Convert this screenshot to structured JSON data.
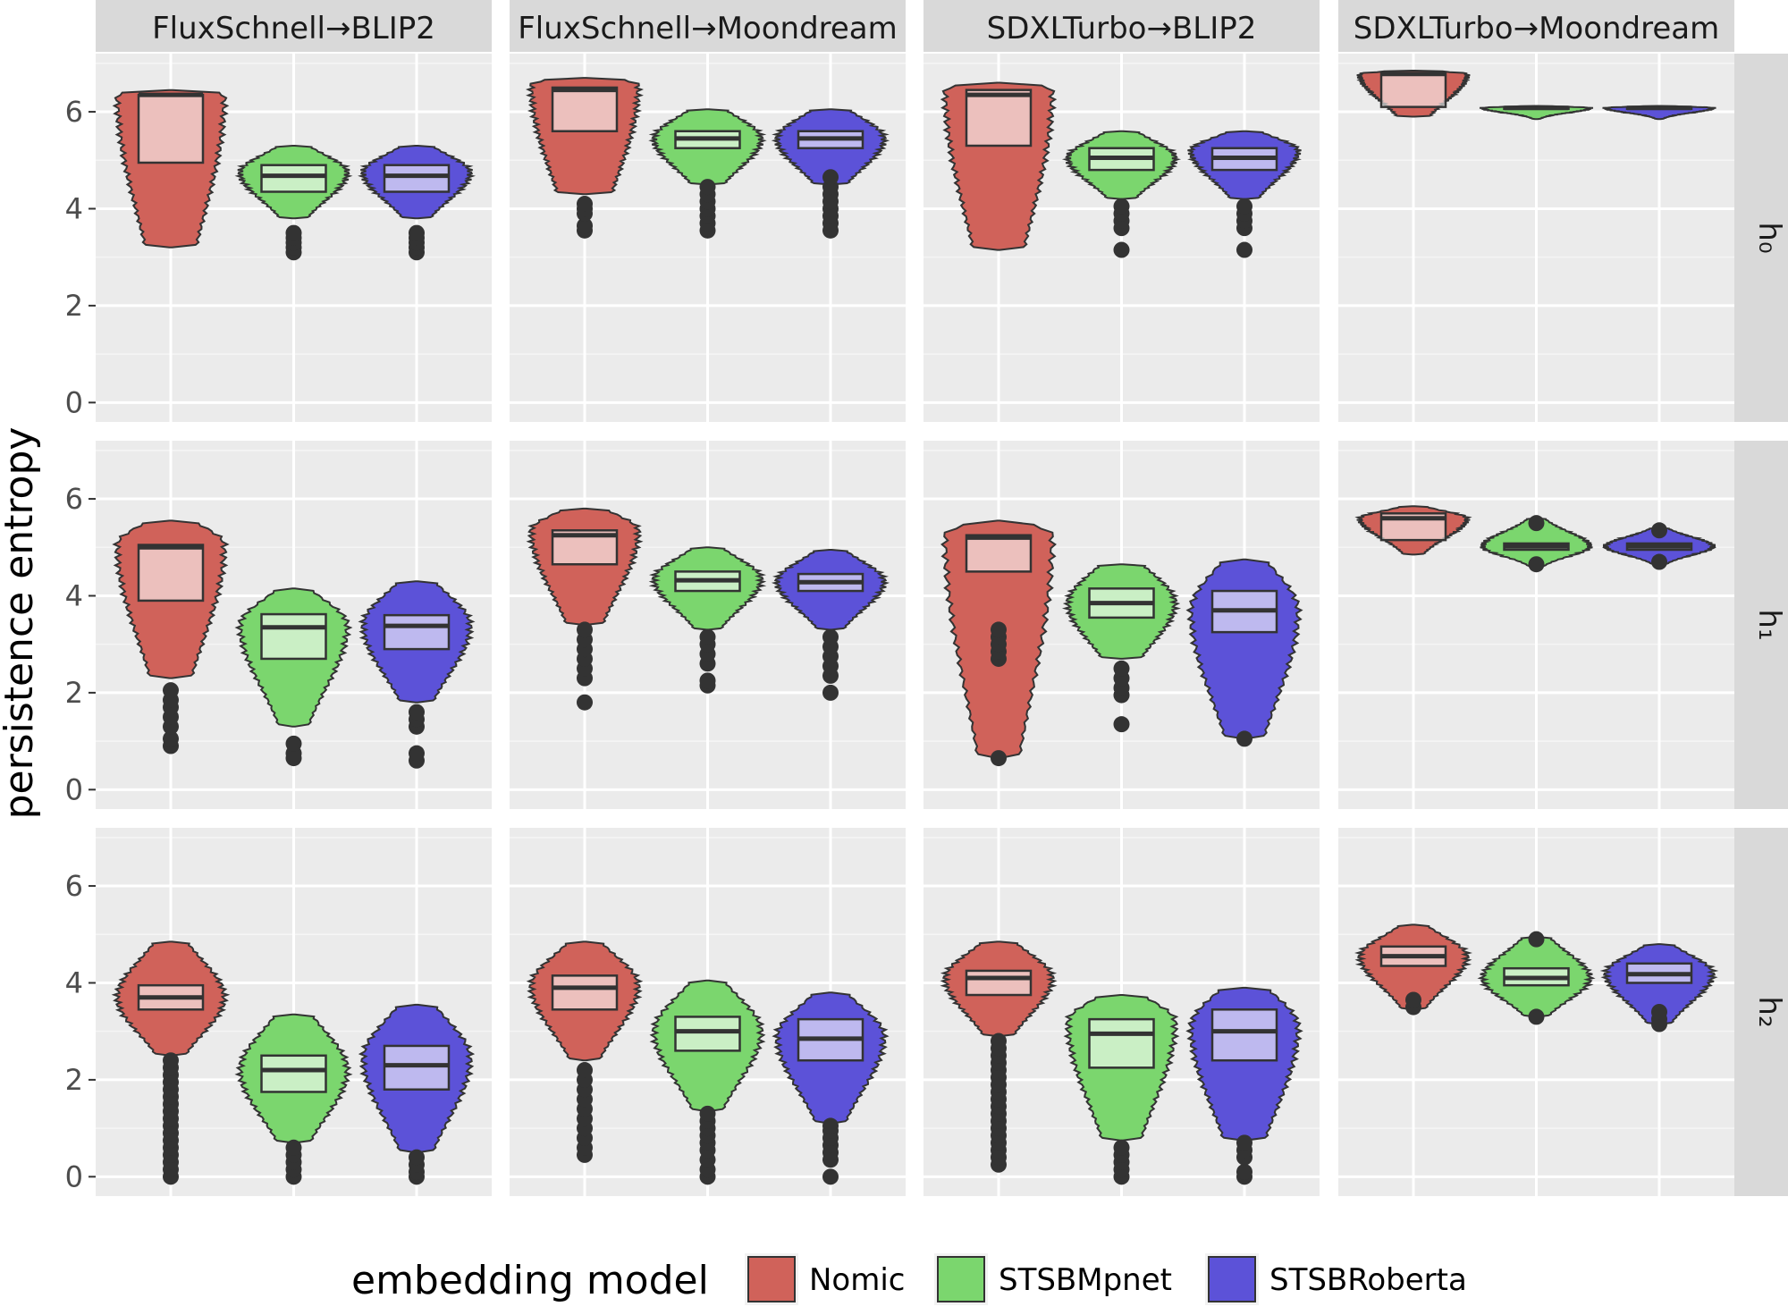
{
  "chart_data": {
    "type": "violin",
    "ylabel": "persistence entropy",
    "ylim": [
      -0.4,
      7.2
    ],
    "yticks": [
      0,
      2,
      4,
      6
    ],
    "grid": true,
    "legend": {
      "title": "embedding model",
      "position": "bottom"
    },
    "columns": [
      "FluxSchnell→BLIP2",
      "FluxSchnell→Moondream",
      "SDXLTurbo→BLIP2",
      "SDXLTurbo→Moondream"
    ],
    "rows": [
      "h₀",
      "h₁",
      "h₂"
    ],
    "series": [
      {
        "name": "Nomic",
        "color": "#d0625a"
      },
      {
        "name": "STSBMpnet",
        "color": "#7bd66e"
      },
      {
        "name": "STSBRoberta",
        "color": "#5c52d8"
      }
    ],
    "panels": [
      {
        "row": 0,
        "col": 0,
        "groups": [
          {
            "model": "Nomic",
            "min": 3.2,
            "max": 6.45,
            "q1": 4.95,
            "median": 6.35,
            "q3": 6.35,
            "mode": 6.35,
            "spread": 0.22,
            "outliers": []
          },
          {
            "model": "STSBMpnet",
            "min": 3.8,
            "max": 5.3,
            "q1": 4.35,
            "median": 4.68,
            "q3": 4.9,
            "mode": 4.75,
            "spread": 0.4,
            "outliers": [
              3.1,
              3.2,
              3.3,
              3.4,
              3.5
            ]
          },
          {
            "model": "STSBRoberta",
            "min": 3.8,
            "max": 5.3,
            "q1": 4.35,
            "median": 4.68,
            "q3": 4.9,
            "mode": 4.75,
            "spread": 0.4,
            "outliers": [
              3.1,
              3.2,
              3.3,
              3.4,
              3.5
            ]
          }
        ]
      },
      {
        "row": 0,
        "col": 1,
        "groups": [
          {
            "model": "Nomic",
            "min": 4.3,
            "max": 6.7,
            "q1": 5.6,
            "median": 6.45,
            "q3": 6.5,
            "mode": 6.55,
            "spread": 0.2,
            "outliers": [
              3.55,
              3.65,
              3.9,
              4.0,
              4.1
            ]
          },
          {
            "model": "STSBMpnet",
            "min": 4.5,
            "max": 6.05,
            "q1": 5.25,
            "median": 5.45,
            "q3": 5.6,
            "mode": 5.45,
            "spread": 0.35,
            "outliers": [
              3.55,
              3.7,
              3.85,
              4.0,
              4.15,
              4.3,
              4.45
            ]
          },
          {
            "model": "STSBRoberta",
            "min": 4.5,
            "max": 6.05,
            "q1": 5.25,
            "median": 5.45,
            "q3": 5.6,
            "mode": 5.45,
            "spread": 0.35,
            "outliers": [
              3.55,
              3.7,
              3.85,
              4.0,
              4.15,
              4.3,
              4.45,
              4.65
            ]
          }
        ]
      },
      {
        "row": 0,
        "col": 2,
        "groups": [
          {
            "model": "Nomic",
            "min": 3.15,
            "max": 6.6,
            "q1": 5.3,
            "median": 6.35,
            "q3": 6.45,
            "mode": 6.45,
            "spread": 0.22,
            "outliers": []
          },
          {
            "model": "STSBMpnet",
            "min": 4.2,
            "max": 5.6,
            "q1": 4.8,
            "median": 5.05,
            "q3": 5.25,
            "mode": 5.05,
            "spread": 0.4,
            "outliers": [
              3.15,
              3.6,
              3.75,
              3.9,
              4.05
            ]
          },
          {
            "model": "STSBRoberta",
            "min": 4.2,
            "max": 5.6,
            "q1": 4.8,
            "median": 5.05,
            "q3": 5.25,
            "mode": 5.2,
            "spread": 0.4,
            "outliers": [
              3.15,
              3.6,
              3.75,
              3.9,
              4.05
            ]
          }
        ]
      },
      {
        "row": 0,
        "col": 3,
        "groups": [
          {
            "model": "Nomic",
            "min": 5.9,
            "max": 6.85,
            "q1": 6.1,
            "median": 6.78,
            "q3": 6.8,
            "mode": 6.78,
            "spread": 0.35,
            "outliers": []
          },
          {
            "model": "STSBMpnet",
            "min": 5.85,
            "max": 6.12,
            "q1": 6.06,
            "median": 6.08,
            "q3": 6.1,
            "mode": 6.08,
            "spread": 0.8,
            "outliers": []
          },
          {
            "model": "STSBRoberta",
            "min": 5.85,
            "max": 6.12,
            "q1": 6.06,
            "median": 6.08,
            "q3": 6.1,
            "mode": 6.08,
            "spread": 0.8,
            "outliers": []
          }
        ]
      },
      {
        "row": 1,
        "col": 0,
        "groups": [
          {
            "model": "Nomic",
            "min": 2.3,
            "max": 5.55,
            "q1": 3.9,
            "median": 5.0,
            "q3": 5.05,
            "mode": 5.05,
            "spread": 0.28,
            "outliers": [
              0.9,
              1.05,
              1.3,
              1.5,
              1.7,
              1.85,
              2.05
            ]
          },
          {
            "model": "STSBMpnet",
            "min": 1.3,
            "max": 4.15,
            "q1": 2.7,
            "median": 3.35,
            "q3": 3.62,
            "mode": 3.4,
            "spread": 0.38,
            "outliers": [
              0.65,
              0.75,
              0.95
            ]
          },
          {
            "model": "STSBRoberta",
            "min": 1.8,
            "max": 4.3,
            "q1": 2.9,
            "median": 3.38,
            "q3": 3.6,
            "mode": 3.4,
            "spread": 0.35,
            "outliers": [
              0.6,
              0.75,
              1.3,
              1.45,
              1.6
            ]
          }
        ]
      },
      {
        "row": 1,
        "col": 1,
        "groups": [
          {
            "model": "Nomic",
            "min": 3.4,
            "max": 5.8,
            "q1": 4.65,
            "median": 5.25,
            "q3": 5.35,
            "mode": 5.35,
            "spread": 0.32,
            "outliers": [
              1.8,
              2.3,
              2.5,
              2.7,
              2.9,
              3.1,
              3.3
            ]
          },
          {
            "model": "STSBMpnet",
            "min": 3.3,
            "max": 5.0,
            "q1": 4.1,
            "median": 4.32,
            "q3": 4.5,
            "mode": 4.35,
            "spread": 0.42,
            "outliers": [
              2.15,
              2.25,
              2.6,
              2.8,
              3.0,
              3.15
            ]
          },
          {
            "model": "STSBRoberta",
            "min": 3.3,
            "max": 4.95,
            "q1": 4.1,
            "median": 4.28,
            "q3": 4.45,
            "mode": 4.3,
            "spread": 0.42,
            "outliers": [
              2.0,
              2.35,
              2.55,
              2.75,
              2.95,
              3.15
            ]
          }
        ]
      },
      {
        "row": 1,
        "col": 2,
        "groups": [
          {
            "model": "Nomic",
            "min": 0.65,
            "max": 5.55,
            "q1": 4.5,
            "median": 5.2,
            "q3": 5.25,
            "mode": 5.25,
            "spread": 0.28,
            "outliers": [
              2.7,
              2.85,
              3.0,
              3.15,
              3.3,
              0.65
            ]
          },
          {
            "model": "STSBMpnet",
            "min": 2.7,
            "max": 4.65,
            "q1": 3.55,
            "median": 3.85,
            "q3": 4.15,
            "mode": 3.85,
            "spread": 0.3,
            "outliers": [
              1.35,
              1.95,
              2.1,
              2.3,
              2.5
            ]
          },
          {
            "model": "STSBRoberta",
            "min": 1.05,
            "max": 4.75,
            "q1": 3.25,
            "median": 3.7,
            "q3": 4.1,
            "mode": 3.7,
            "spread": 0.3,
            "outliers": [
              1.05
            ]
          }
        ]
      },
      {
        "row": 1,
        "col": 3,
        "groups": [
          {
            "model": "Nomic",
            "min": 4.85,
            "max": 5.85,
            "q1": 5.15,
            "median": 5.6,
            "q3": 5.7,
            "mode": 5.6,
            "spread": 0.5,
            "outliers": []
          },
          {
            "model": "STSBMpnet",
            "min": 4.6,
            "max": 5.6,
            "q1": 4.95,
            "median": 5.02,
            "q3": 5.08,
            "mode": 5.02,
            "spread": 0.6,
            "outliers": [
              4.65,
              5.5
            ]
          },
          {
            "model": "STSBRoberta",
            "min": 4.65,
            "max": 5.4,
            "q1": 4.95,
            "median": 5.02,
            "q3": 5.08,
            "mode": 5.02,
            "spread": 0.6,
            "outliers": [
              4.7,
              5.35
            ]
          }
        ]
      },
      {
        "row": 2,
        "col": 0,
        "groups": [
          {
            "model": "Nomic",
            "min": 2.5,
            "max": 4.85,
            "q1": 3.45,
            "median": 3.7,
            "q3": 3.95,
            "mode": 3.7,
            "spread": 0.38,
            "outliers": [
              0.0,
              0.15,
              0.3,
              0.45,
              0.6,
              0.75,
              0.9,
              1.05,
              1.2,
              1.35,
              1.5,
              1.65,
              1.8,
              1.95,
              2.1,
              2.25,
              2.4
            ]
          },
          {
            "model": "STSBMpnet",
            "min": 0.7,
            "max": 3.35,
            "q1": 1.75,
            "median": 2.2,
            "q3": 2.5,
            "mode": 2.2,
            "spread": 0.35,
            "outliers": [
              0.0,
              0.15,
              0.3,
              0.45,
              0.6
            ]
          },
          {
            "model": "STSBRoberta",
            "min": 0.5,
            "max": 3.55,
            "q1": 1.8,
            "median": 2.3,
            "q3": 2.7,
            "mode": 2.45,
            "spread": 0.35,
            "outliers": [
              0.0,
              0.1,
              0.25,
              0.4
            ]
          }
        ]
      },
      {
        "row": 2,
        "col": 1,
        "groups": [
          {
            "model": "Nomic",
            "min": 2.4,
            "max": 4.85,
            "q1": 3.45,
            "median": 3.9,
            "q3": 4.15,
            "mode": 3.95,
            "spread": 0.38,
            "outliers": [
              0.45,
              0.6,
              0.8,
              1.0,
              1.2,
              1.4,
              1.6,
              1.8,
              2.0,
              2.2
            ]
          },
          {
            "model": "STSBMpnet",
            "min": 1.35,
            "max": 4.05,
            "q1": 2.6,
            "median": 3.0,
            "q3": 3.3,
            "mode": 3.0,
            "spread": 0.38,
            "outliers": [
              0.0,
              0.15,
              0.35,
              0.55,
              0.7,
              0.85,
              1.0,
              1.15,
              1.3
            ]
          },
          {
            "model": "STSBRoberta",
            "min": 1.1,
            "max": 3.8,
            "q1": 2.4,
            "median": 2.85,
            "q3": 3.25,
            "mode": 2.9,
            "spread": 0.38,
            "outliers": [
              0.0,
              0.35,
              0.5,
              0.65,
              0.8,
              0.95,
              1.05
            ]
          }
        ]
      },
      {
        "row": 2,
        "col": 2,
        "groups": [
          {
            "model": "Nomic",
            "min": 2.9,
            "max": 4.85,
            "q1": 3.75,
            "median": 4.1,
            "q3": 4.25,
            "mode": 4.1,
            "spread": 0.38,
            "outliers": [
              0.25,
              0.4,
              0.55,
              0.7,
              0.85,
              1.0,
              1.15,
              1.3,
              1.45,
              1.6,
              1.75,
              1.9,
              2.05,
              2.2,
              2.35,
              2.5,
              2.65,
              2.8
            ]
          },
          {
            "model": "STSBMpnet",
            "min": 0.75,
            "max": 3.75,
            "q1": 2.25,
            "median": 2.95,
            "q3": 3.25,
            "mode": 3.2,
            "spread": 0.3,
            "outliers": [
              0.0,
              0.15,
              0.3,
              0.45,
              0.6
            ]
          },
          {
            "model": "STSBRoberta",
            "min": 0.75,
            "max": 3.9,
            "q1": 2.4,
            "median": 3.0,
            "q3": 3.45,
            "mode": 3.1,
            "spread": 0.28,
            "outliers": [
              0.0,
              0.1,
              0.4,
              0.55,
              0.7
            ]
          }
        ]
      },
      {
        "row": 2,
        "col": 3,
        "groups": [
          {
            "model": "Nomic",
            "min": 3.45,
            "max": 5.2,
            "q1": 4.35,
            "median": 4.55,
            "q3": 4.75,
            "mode": 4.55,
            "spread": 0.45,
            "outliers": [
              3.5,
              3.65
            ]
          },
          {
            "model": "STSBMpnet",
            "min": 3.3,
            "max": 4.95,
            "q1": 3.95,
            "median": 4.1,
            "q3": 4.3,
            "mode": 4.1,
            "spread": 0.45,
            "outliers": [
              3.3,
              4.9
            ]
          },
          {
            "model": "STSBRoberta",
            "min": 3.15,
            "max": 4.8,
            "q1": 4.0,
            "median": 4.18,
            "q3": 4.4,
            "mode": 4.2,
            "spread": 0.45,
            "outliers": [
              3.15,
              3.25,
              3.4
            ]
          }
        ]
      }
    ]
  }
}
